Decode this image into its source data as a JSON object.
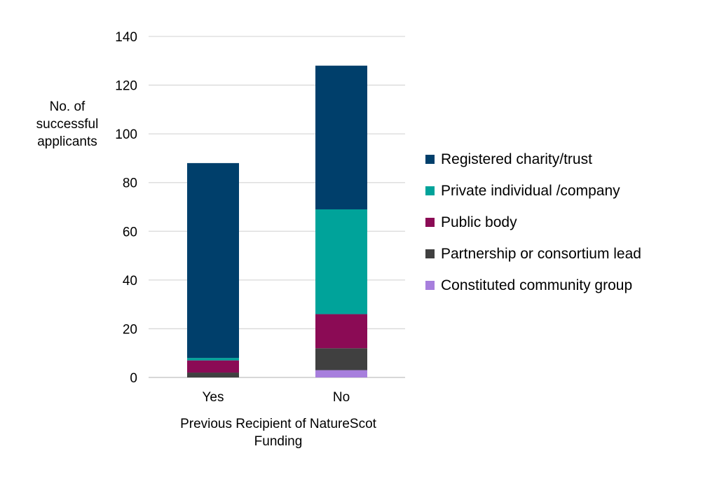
{
  "chart_data": {
    "type": "bar",
    "stacked": true,
    "categories": [
      "Yes",
      "No"
    ],
    "series": [
      {
        "name": "Constituted community group",
        "values": [
          0,
          3
        ],
        "color": "#a77fdd"
      },
      {
        "name": "Partnership or consortium lead",
        "values": [
          2,
          9
        ],
        "color": "#404040"
      },
      {
        "name": "Public body",
        "values": [
          5,
          14
        ],
        "color": "#8b0b55"
      },
      {
        "name": "Private individual /company",
        "values": [
          1,
          43
        ],
        "color": "#00a39a"
      },
      {
        "name": "Registered charity/trust",
        "values": [
          80,
          59
        ],
        "color": "#003f6b"
      }
    ],
    "legend_order": [
      "Registered charity/trust",
      "Private individual /company",
      "Public body",
      "Partnership or consortium lead",
      "Constituted community group"
    ],
    "ylabel_lines": [
      "No. of",
      "successful",
      "applicants"
    ],
    "xlabel_lines": [
      "Previous Recipient of NatureScot",
      "Funding"
    ],
    "ylim": [
      0,
      140
    ],
    "yticks": [
      0,
      20,
      40,
      60,
      80,
      100,
      120,
      140
    ],
    "grid": true,
    "legend_position": "right"
  }
}
